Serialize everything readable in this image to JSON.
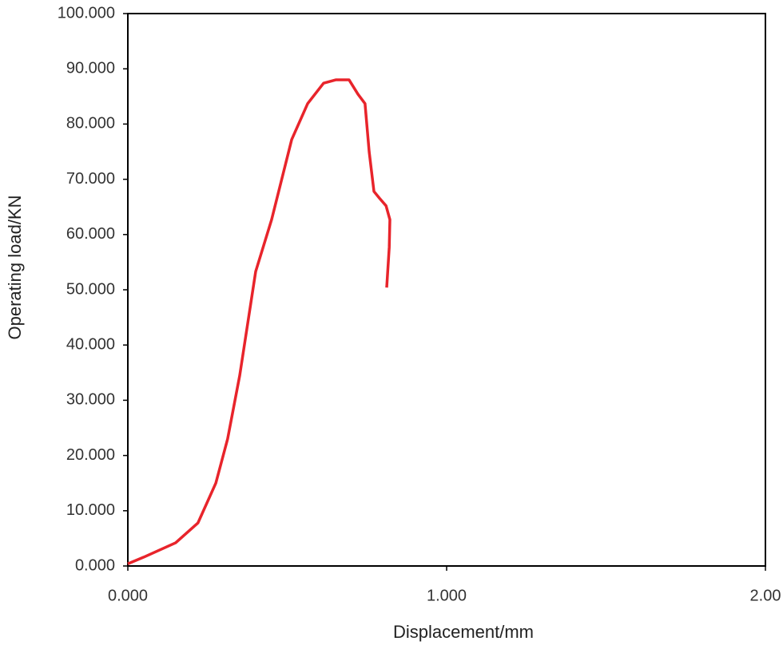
{
  "chart_data": {
    "type": "line",
    "x_label": "Displacement/mm",
    "y_label": "Operating load/KN",
    "series": [
      {
        "color": "#e8242b",
        "x": [
          0,
          0.05,
          0.15,
          0.22,
          0.276,
          0.313,
          0.351,
          0.401,
          0.451,
          0.514,
          0.564,
          0.614,
          0.652,
          0.694,
          0.722,
          0.744,
          0.757,
          0.772,
          0.789,
          0.81,
          0.822,
          0.82,
          0.812
        ],
        "values": [
          0.4,
          1.6,
          4.2,
          7.8,
          15.0,
          23.0,
          34.5,
          53.3,
          62.7,
          77.2,
          83.7,
          87.4,
          88.0,
          88.0,
          85.4,
          83.7,
          75.0,
          67.8,
          66.6,
          65.2,
          62.7,
          57.7,
          50.4
        ]
      }
    ],
    "xlim": [
      0,
      2
    ],
    "xticks": [
      {
        "value": 0,
        "label": "0.000"
      },
      {
        "value": 1,
        "label": "1.000"
      },
      {
        "value": 2,
        "label": "2.00"
      }
    ],
    "ylim": [
      0,
      100
    ],
    "yticks": [
      {
        "value": 0,
        "label": "0.000"
      },
      {
        "value": 10,
        "label": "10.000"
      },
      {
        "value": 20,
        "label": "20.000"
      },
      {
        "value": 30,
        "label": "30.000"
      },
      {
        "value": 40,
        "label": "40.000"
      },
      {
        "value": 50,
        "label": "50.000"
      },
      {
        "value": 60,
        "label": "60.000"
      },
      {
        "value": 70,
        "label": "70.000"
      },
      {
        "value": 80,
        "label": "80.000"
      },
      {
        "value": 90,
        "label": "90.000"
      },
      {
        "value": 100,
        "label": "100.000"
      }
    ]
  }
}
